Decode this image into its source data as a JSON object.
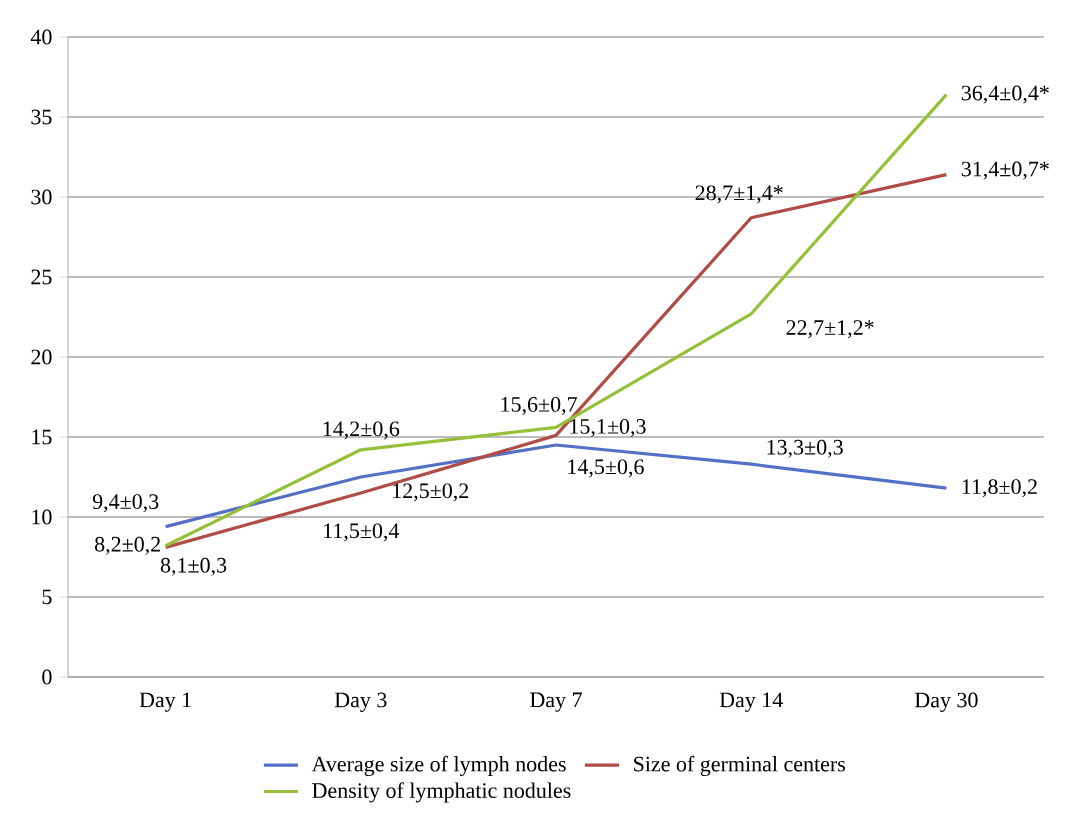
{
  "chart_data": {
    "type": "line",
    "categories": [
      "Day 1",
      "Day 3",
      "Day 7",
      "Day 14",
      "Day 30"
    ],
    "series": [
      {
        "name": "Average size of lymph nodes",
        "color": "#5470c6",
        "values": [
          9.4,
          12.5,
          14.5,
          13.3,
          11.8
        ],
        "value_labels": [
          "9,4±0,3",
          "12,5±0,2",
          "14,5±0,6",
          "13,3±0,3",
          "11,8±0,2"
        ]
      },
      {
        "name": "Size of germinal centers",
        "color": "#b04b46",
        "values": [
          8.1,
          11.5,
          15.1,
          28.7,
          31.4
        ],
        "value_labels": [
          "8,1±0,3",
          "11,5±0,4",
          "15,1±0,3",
          "28,7±1,4*",
          "31,4±0,7*"
        ]
      },
      {
        "name": "Density of lymphatic nodules",
        "color": "#96c03a",
        "values": [
          8.2,
          14.2,
          15.6,
          22.7,
          36.4
        ],
        "value_labels": [
          "8,2±0,2",
          "14,2±0,6",
          "15,6±0,7",
          "22,7±1,2*",
          "36,4±0,4*"
        ]
      }
    ],
    "ylim": [
      0,
      40
    ],
    "yticks": [
      0,
      5,
      10,
      15,
      20,
      25,
      30,
      35,
      40
    ],
    "grid": "y",
    "legend": "bottom",
    "marker": "none",
    "line_style": "solid"
  }
}
